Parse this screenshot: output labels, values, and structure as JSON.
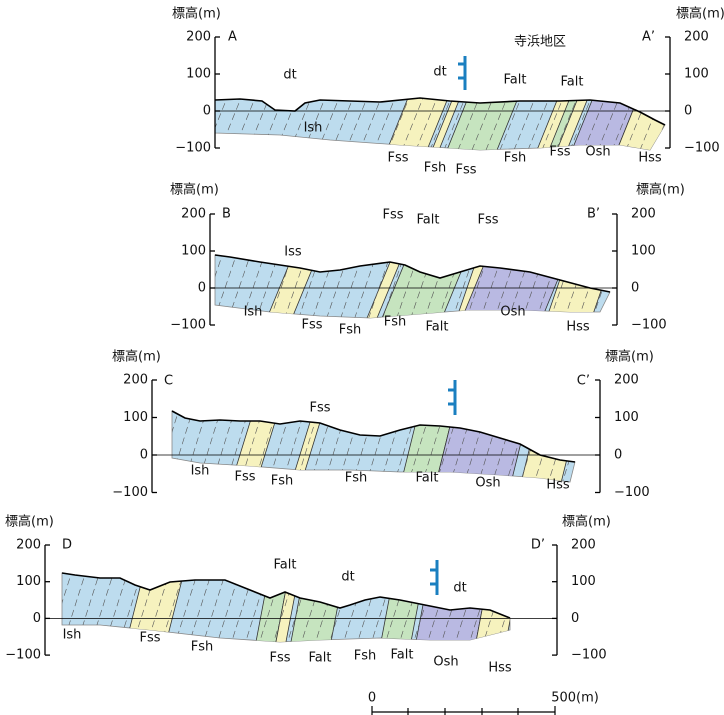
{
  "location": "寺浜地区",
  "sections": [
    {
      "left_label": "A",
      "right_label": "A’",
      "left_axis": {
        "title": "標高(m)",
        "ticks": [
          "200",
          "100",
          "0",
          "−100"
        ]
      },
      "right_axis": {
        "title": "標高(m)",
        "ticks": [
          "200",
          "100",
          "0",
          "−100"
        ]
      },
      "units": [
        "dt",
        "dt",
        "Falt",
        "Falt",
        "Ish",
        "Fss",
        "Fsh",
        "Fss",
        "Fsh",
        "Fss",
        "Osh",
        "Hss"
      ]
    },
    {
      "left_label": "B",
      "right_label": "B’",
      "left_axis": {
        "title": "標高(m)",
        "ticks": [
          "200",
          "100",
          "0",
          "−100"
        ]
      },
      "right_axis": {
        "title": "標高(m)",
        "ticks": [
          "200",
          "100",
          "0",
          "−100"
        ]
      },
      "units": [
        "Iss",
        "Fss",
        "Falt",
        "Fss",
        "Ish",
        "Fss",
        "Fsh",
        "Fsh",
        "Falt",
        "Osh",
        "Hss"
      ]
    },
    {
      "left_label": "C",
      "right_label": "C’",
      "left_axis": {
        "title": "標高(m)",
        "ticks": [
          "200",
          "100",
          "0",
          "−100"
        ]
      },
      "right_axis": {
        "title": "標高(m)",
        "ticks": [
          "200",
          "100",
          "0",
          "−100"
        ]
      },
      "units": [
        "Fss",
        "Ish",
        "Fss",
        "Fsh",
        "Fsh",
        "Falt",
        "Osh",
        "Hss"
      ]
    },
    {
      "left_label": "D",
      "right_label": "D’",
      "left_axis": {
        "title": "標高(m)",
        "ticks": [
          "200",
          "100",
          "0",
          "−100"
        ]
      },
      "right_axis": {
        "title": "標高(m)",
        "ticks": [
          "200",
          "100",
          "0",
          "−100"
        ]
      },
      "units": [
        "Falt",
        "dt",
        "dt",
        "Ish",
        "Fss",
        "Fsh",
        "Fss",
        "Falt",
        "Fsh",
        "Falt",
        "Osh",
        "Hss"
      ]
    }
  ],
  "scale_bar": {
    "start": "0",
    "end": "500(m)"
  }
}
